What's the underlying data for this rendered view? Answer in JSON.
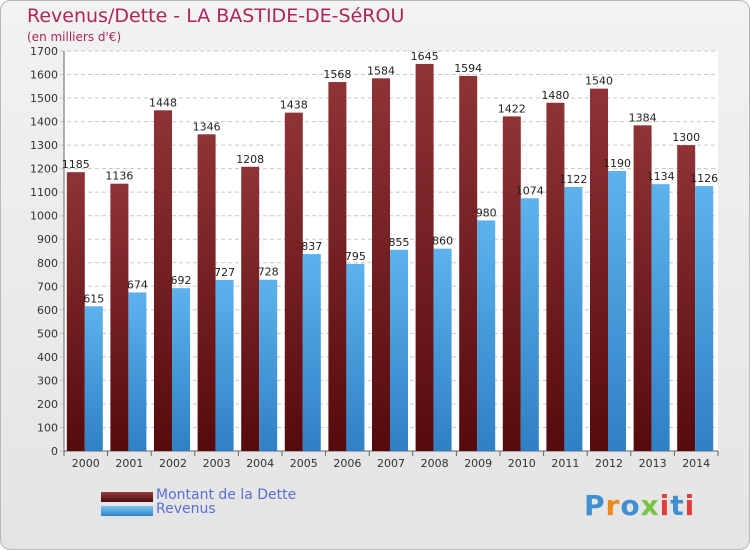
{
  "chart_data": {
    "type": "bar",
    "title": "Revenus/Dette - LA BASTIDE-DE-SéROU",
    "subtitle": "(en milliers d'€)",
    "categories": [
      "2000",
      "2001",
      "2002",
      "2003",
      "2004",
      "2005",
      "2006",
      "2007",
      "2008",
      "2009",
      "2010",
      "2011",
      "2012",
      "2013",
      "2014"
    ],
    "series": [
      {
        "name": "Montant de la Dette",
        "color": "#7a1f22",
        "values": [
          1185,
          1136,
          1448,
          1346,
          1208,
          1438,
          1568,
          1584,
          1645,
          1594,
          1422,
          1480,
          1540,
          1384,
          1300
        ]
      },
      {
        "name": "Revenus",
        "color": "#4fa6e6",
        "values": [
          615,
          674,
          692,
          727,
          728,
          837,
          795,
          855,
          860,
          980,
          1074,
          1122,
          1190,
          1134,
          1126
        ]
      }
    ],
    "ylim": [
      0,
      1700
    ],
    "ytick_step": 100,
    "grid": true,
    "legend_position": "bottom-left"
  },
  "logo": {
    "letters": [
      "P",
      "r",
      "o",
      "x",
      "i",
      "t",
      "i"
    ],
    "colors": [
      "#3f8fd2",
      "#f08a1c",
      "#3f8fd2",
      "#7cc242",
      "#e23c3c",
      "#3f8fd2",
      "#e23c3c"
    ]
  }
}
